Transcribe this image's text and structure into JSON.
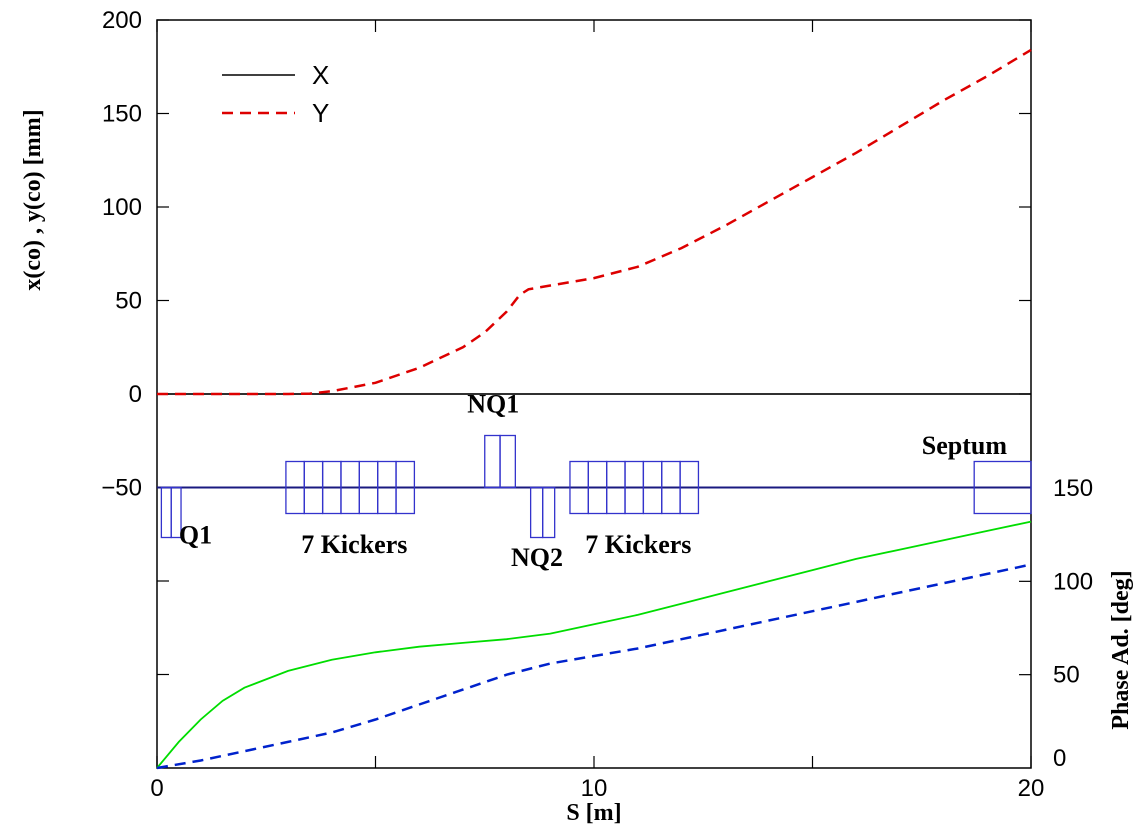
{
  "chart_data": {
    "type": "line",
    "xlabel": "S [m]",
    "ylabel_left": "x(co) , y(co) [mm]",
    "ylabel_right": "Phase Ad. [deg]",
    "xlim": [
      0,
      20
    ],
    "ylim_left": [
      -50,
      200
    ],
    "ylim_right": [
      0,
      150
    ],
    "x_ticks": [
      "0",
      "10",
      "20"
    ],
    "y_left_ticks": [
      "200",
      "150",
      "100",
      "50",
      "0",
      "−50"
    ],
    "y_right_ticks": [
      "150",
      "100",
      "50",
      "0"
    ],
    "grid": false,
    "legend_position": "top-left",
    "legend": [
      {
        "label": "X",
        "color": "#000000",
        "style": "solid"
      },
      {
        "label": "Y",
        "color": "#dd0000",
        "style": "dashed"
      }
    ],
    "closed_orbit_series": [
      {
        "name": "X",
        "axis": "left",
        "color": "#000000",
        "style": "solid",
        "x": [
          0,
          20
        ],
        "y": [
          0,
          0
        ]
      },
      {
        "name": "Y",
        "axis": "left",
        "color": "#dd0000",
        "style": "dashed",
        "x": [
          0,
          2,
          3,
          3.5,
          4,
          5,
          6,
          7,
          7.5,
          8,
          8.3,
          8.5,
          9,
          10,
          11,
          12,
          13,
          14,
          15,
          16,
          17,
          18,
          19,
          20
        ],
        "y": [
          0,
          0,
          0,
          0.2,
          1.5,
          6,
          14,
          25,
          33,
          44,
          53,
          56,
          58,
          62,
          68,
          78,
          90,
          103,
          116,
          129,
          143,
          157,
          170,
          184
        ]
      }
    ],
    "phase_advance_series": [
      {
        "axis": "right",
        "color": "#00dd00",
        "style": "solid",
        "x": [
          0,
          0.5,
          1,
          1.5,
          2,
          3,
          4,
          5,
          6,
          7,
          8,
          9,
          10,
          11,
          12,
          13,
          14,
          15,
          16,
          17,
          18,
          19,
          20
        ],
        "y": [
          0,
          14,
          26,
          36,
          43,
          52,
          58,
          62,
          65,
          67,
          69,
          72,
          77,
          82,
          88,
          94,
          100,
          106,
          112,
          117,
          122,
          127,
          132
        ]
      },
      {
        "axis": "right",
        "color": "#0022cc",
        "style": "dashed",
        "x": [
          0,
          1,
          2,
          3,
          4,
          5,
          6,
          7,
          8,
          9,
          10,
          11,
          12,
          13,
          14,
          15,
          16,
          17,
          18,
          19,
          20
        ],
        "y": [
          0,
          4,
          9,
          14,
          19,
          26,
          34,
          42,
          50,
          56,
          60,
          64,
          69,
          74,
          79,
          84,
          89,
          94,
          99,
          104,
          109
        ]
      }
    ],
    "lattice_elements": {
      "baseline": -50,
      "color": "#3333cc",
      "magnets": [
        {
          "name": "Q1",
          "kind": "quad-defocus",
          "s_start": 0.1,
          "s_end": 0.55
        },
        {
          "name": "NQ1",
          "kind": "quad-focus",
          "s_start": 7.5,
          "s_end": 8.2
        },
        {
          "name": "NQ2",
          "kind": "quad-defocus",
          "s_start": 8.55,
          "s_end": 9.1
        },
        {
          "name": "Septum",
          "kind": "septum",
          "s_start": 18.7,
          "s_end": 20
        }
      ],
      "kicker_groups": [
        {
          "name": "7 Kickers",
          "s_start": 2.95,
          "count": 7,
          "width": 0.42,
          "gap": 0.0
        },
        {
          "name": "7 Kickers",
          "s_start": 9.45,
          "count": 7,
          "width": 0.42,
          "gap": 0.0
        }
      ],
      "labels": [
        {
          "text": "Q1",
          "s": 0.5,
          "y": -80
        },
        {
          "text": "7 Kickers",
          "s": 3.3,
          "y": -85
        },
        {
          "text": "NQ1",
          "s": 7.1,
          "y": -10
        },
        {
          "text": "NQ2",
          "s": 8.1,
          "y": -92
        },
        {
          "text": "7 Kickers",
          "s": 9.8,
          "y": -85
        },
        {
          "text": "Septum",
          "s": 17.5,
          "y": -32
        }
      ]
    }
  }
}
